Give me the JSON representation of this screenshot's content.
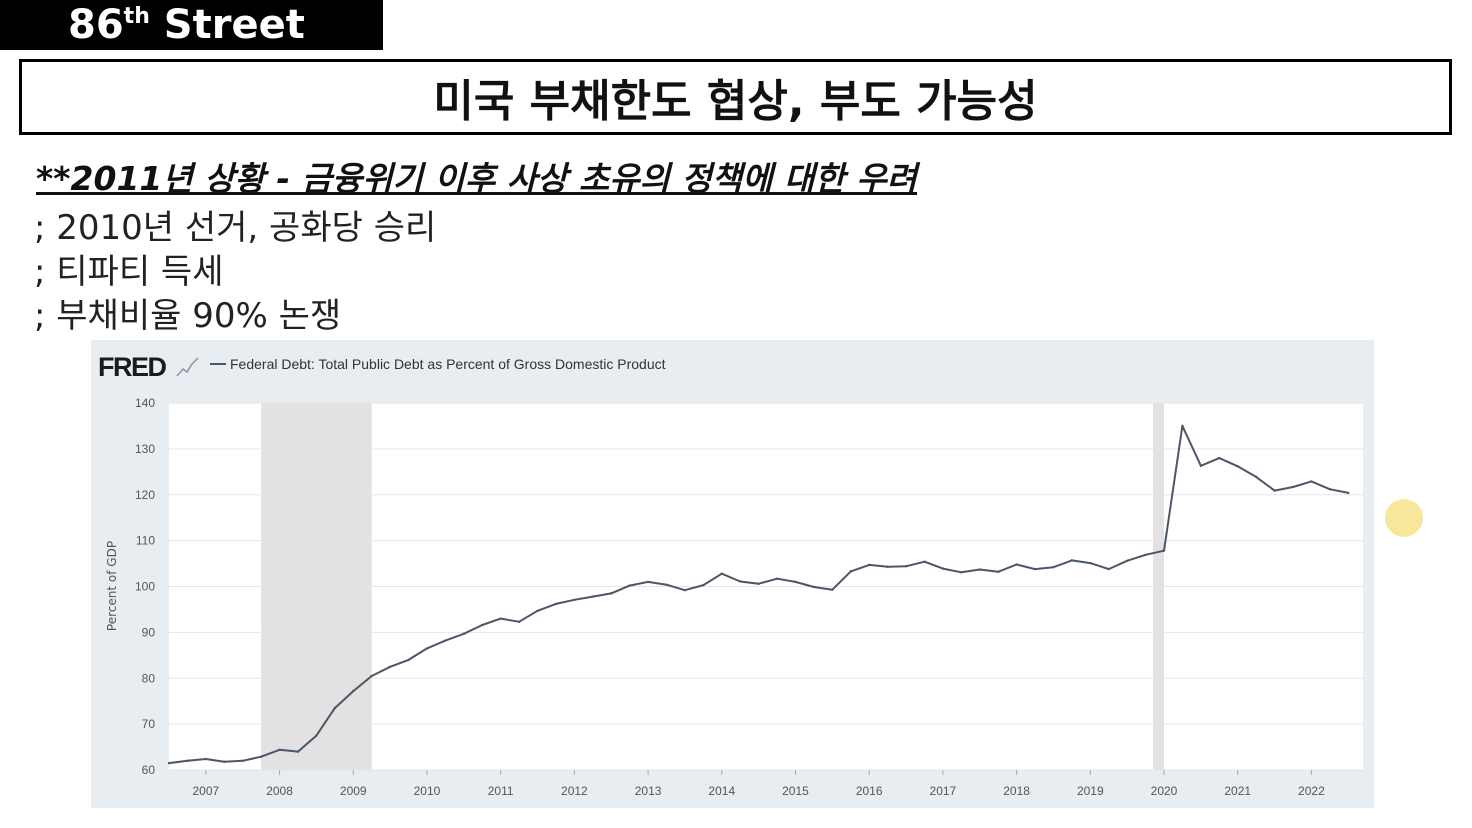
{
  "channel": {
    "name": "86",
    "suffix": "th",
    "rest": " Street"
  },
  "slide": {
    "title": "미국 부채한도 협상, 부도 가능성",
    "subtitle": "**2011년 상황 - 금융위기 이후 사상 초유의 정책에 대한 우려",
    "bullets": [
      "; 2010년 선거, 공화당 승리",
      "; 티파티 득세",
      "; 부채비율 90% 논쟁"
    ]
  },
  "chart_data": {
    "type": "line",
    "source_logo": "FRED",
    "legend": "Federal Debt: Total Public Debt as Percent of Gross Domestic Product",
    "ylabel": "Percent of GDP",
    "ylim": [
      60,
      140
    ],
    "yticks": [
      140,
      130,
      120,
      110,
      100,
      90,
      80,
      70,
      60
    ],
    "xticks": [
      "2007",
      "2008",
      "2009",
      "2010",
      "2011",
      "2012",
      "2013",
      "2014",
      "2015",
      "2016",
      "2017",
      "2018",
      "2019",
      "2020",
      "2021",
      "2022"
    ],
    "grid": true,
    "line_color": "#4b5766",
    "recession_color": "#e2e2e2",
    "recessions": [
      {
        "start": 2008.0,
        "end": 2009.5
      },
      {
        "start": 2020.1,
        "end": 2020.25
      }
    ],
    "series": [
      {
        "x": [
          2006.75,
          2007.0,
          2007.25,
          2007.5,
          2007.75,
          2008.0,
          2008.25,
          2008.5,
          2008.75,
          2009.0,
          2009.25,
          2009.5,
          2009.75,
          2010.0,
          2010.25,
          2010.5,
          2010.75,
          2011.0,
          2011.25,
          2011.5,
          2011.75,
          2012.0,
          2012.25,
          2012.5,
          2012.75,
          2013.0,
          2013.25,
          2013.5,
          2013.75,
          2014.0,
          2014.25,
          2014.5,
          2014.75,
          2015.0,
          2015.25,
          2015.5,
          2015.75,
          2016.0,
          2016.25,
          2016.5,
          2016.75,
          2017.0,
          2017.25,
          2017.5,
          2017.75,
          2018.0,
          2018.25,
          2018.5,
          2018.75,
          2019.0,
          2019.25,
          2019.5,
          2019.75,
          2020.0,
          2020.25,
          2020.5,
          2020.75,
          2021.0,
          2021.25,
          2021.5,
          2021.75,
          2022.0,
          2022.25,
          2022.5,
          2022.75
        ],
        "values": [
          61.5,
          62.0,
          62.4,
          61.8,
          62.0,
          62.9,
          64.4,
          64.0,
          67.5,
          73.5,
          77.2,
          80.5,
          82.5,
          84.0,
          86.5,
          88.2,
          89.7,
          91.6,
          93.0,
          92.3,
          94.7,
          96.2,
          97.1,
          97.8,
          98.5,
          100.2,
          101.0,
          100.4,
          99.2,
          100.3,
          102.8,
          101.1,
          100.6,
          101.7,
          101.0,
          99.9,
          99.3,
          103.3,
          104.7,
          104.3,
          104.4,
          105.4,
          103.9,
          103.1,
          103.7,
          103.2,
          104.8,
          103.8,
          104.2,
          105.7,
          105.1,
          103.8,
          105.6,
          106.9,
          107.8,
          135.0,
          126.3,
          128.0,
          126.2,
          123.9,
          120.9,
          121.7,
          122.9,
          121.2,
          120.4
        ]
      }
    ]
  }
}
